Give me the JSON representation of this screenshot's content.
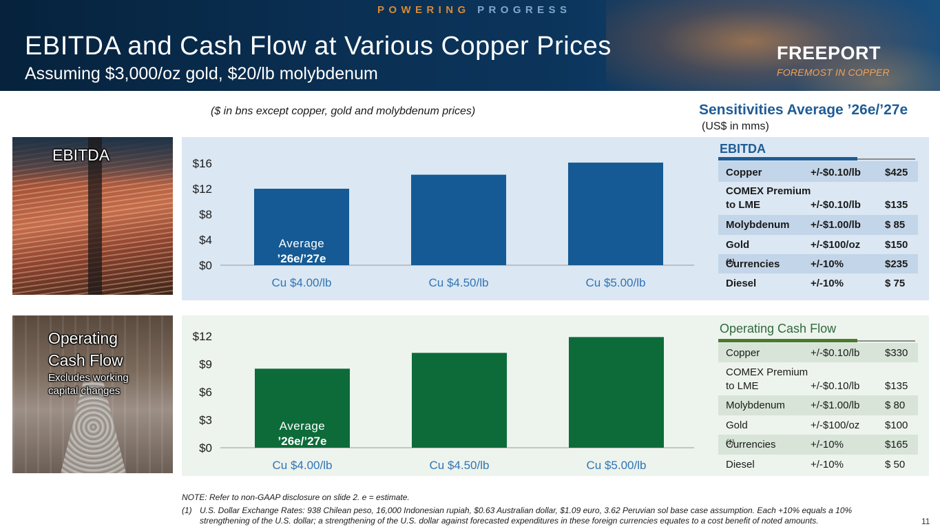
{
  "header": {
    "tagline_part1": "POWERING",
    "tagline_part2": "PROGRESS",
    "title": "EBITDA and Cash Flow at Various Copper Prices",
    "subtitle": "Assuming $3,000/oz gold, $20/lb molybdenum",
    "logo_word": "FREEPORT",
    "logo_tagline": "FOREMOST IN COPPER"
  },
  "units_note": "($ in bns except copper, gold and molybdenum prices)",
  "sensitivities": {
    "title": "Sensitivities Average ’26e/’27e",
    "subtitle": "(US$ in mms)",
    "ebitda": {
      "heading": "EBITDA",
      "rows": [
        {
          "name": "Copper",
          "delta": "+/-$0.10/lb",
          "value": "$425"
        },
        {
          "name": "COMEX Premium",
          "name2": "to LME",
          "delta": "+/-$0.10/lb",
          "value": "$135"
        },
        {
          "name": "Molybdenum",
          "delta": "+/-$1.00/lb",
          "value": "$  85"
        },
        {
          "name": "Gold",
          "delta": "+/-$100/oz",
          "value": "$150"
        },
        {
          "name": "Currencies",
          "sup": "(1)",
          "delta": "+/-10%",
          "value": "$235"
        },
        {
          "name": "Diesel",
          "delta": "+/-10%",
          "value": "$  75"
        }
      ]
    },
    "ocf": {
      "heading": "Operating Cash Flow",
      "rows": [
        {
          "name": "Copper",
          "delta": "+/-$0.10/lb",
          "value": "$330"
        },
        {
          "name": "COMEX Premium",
          "name2": "to LME",
          "delta": "+/-$0.10/lb",
          "value": "$135"
        },
        {
          "name": "Molybdenum",
          "delta": "+/-$1.00/lb",
          "value": "$  80"
        },
        {
          "name": "Gold",
          "delta": "+/-$100/oz",
          "value": "$100"
        },
        {
          "name": "Currencies",
          "sup": "(1)",
          "delta": "+/-10%",
          "value": "$165"
        },
        {
          "name": "Diesel",
          "delta": "+/-10%",
          "value": "$  50"
        }
      ]
    }
  },
  "photo_labels": {
    "ebitda": "EBITDA",
    "ocf_line1": "Operating",
    "ocf_line2": "Cash Flow",
    "ocf_note1": "Excludes working",
    "ocf_note2": "capital changes"
  },
  "chart_data": [
    {
      "type": "bar",
      "categories": [
        "Cu $4.00/lb",
        "Cu $4.50/lb",
        "Cu $5.00/lb"
      ],
      "values": [
        12.0,
        14.2,
        16.1
      ],
      "ylim": [
        0,
        16
      ],
      "yticks": [
        "$0",
        "$4",
        "$8",
        "$12",
        "$16"
      ],
      "ytick_values": [
        0,
        4,
        8,
        12,
        16
      ],
      "bar_label_line1": "Average",
      "bar_label_line2": "’26e/’27e",
      "color": "#155a94",
      "category_color": "#2f75b5"
    },
    {
      "type": "bar",
      "categories": [
        "Cu $4.00/lb",
        "Cu $4.50/lb",
        "Cu $5.00/lb"
      ],
      "values": [
        8.5,
        10.2,
        11.9
      ],
      "ylim": [
        0,
        12
      ],
      "yticks": [
        "$0",
        "$3",
        "$6",
        "$9",
        "$12"
      ],
      "ytick_values": [
        0,
        3,
        6,
        9,
        12
      ],
      "bar_label_line1": "Average",
      "bar_label_line2": "’26e/’27e",
      "color": "#0d6b3a",
      "category_color": "#2f75b5"
    }
  ],
  "footnotes": {
    "note": "NOTE: Refer to non-GAAP disclosure on slide 2. e = estimate.",
    "fn1_marker": "(1)",
    "fn1_line1": "U.S. Dollar Exchange Rates: 938 Chilean peso, 16,000 Indonesian rupiah, $0.63 Australian dollar, $1.09 euro, 3.62 Peruvian sol base case assumption. Each +10% equals a 10%",
    "fn1_line2": "strengthening of the U.S. dollar; a strengthening of the U.S. dollar against forecasted expenditures in these foreign currencies equates to a cost benefit of noted amounts."
  },
  "page_number": "11"
}
